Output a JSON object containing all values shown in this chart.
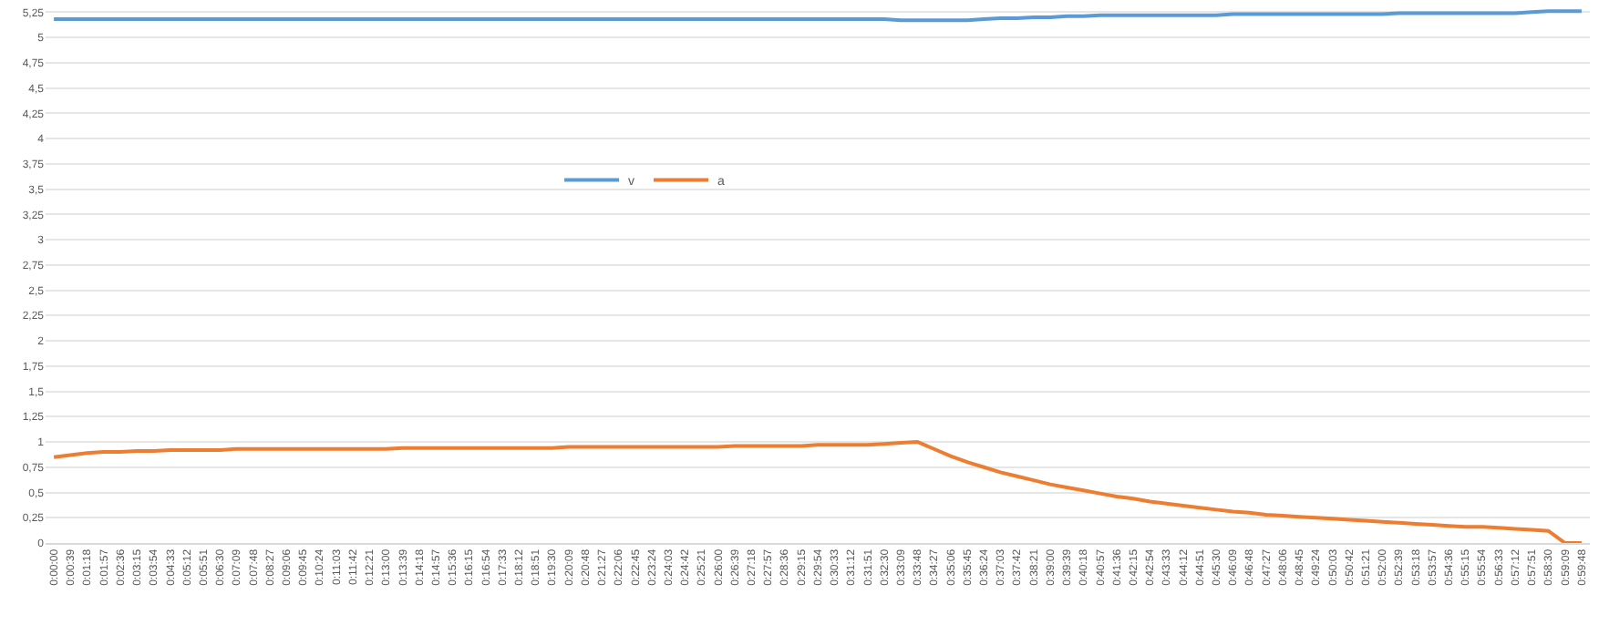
{
  "chart_data": {
    "type": "line",
    "categories": [
      "0:00:00",
      "0:00:39",
      "0:01:18",
      "0:01:57",
      "0:02:36",
      "0:03:15",
      "0:03:54",
      "0:04:33",
      "0:05:12",
      "0:05:51",
      "0:06:30",
      "0:07:09",
      "0:07:48",
      "0:08:27",
      "0:09:06",
      "0:09:45",
      "0:10:24",
      "0:11:03",
      "0:11:42",
      "0:12:21",
      "0:13:00",
      "0:13:39",
      "0:14:18",
      "0:14:57",
      "0:15:36",
      "0:16:15",
      "0:16:54",
      "0:17:33",
      "0:18:12",
      "0:18:51",
      "0:19:30",
      "0:20:09",
      "0:20:48",
      "0:21:27",
      "0:22:06",
      "0:22:45",
      "0:23:24",
      "0:24:03",
      "0:24:42",
      "0:25:21",
      "0:26:00",
      "0:26:39",
      "0:27:18",
      "0:27:57",
      "0:28:36",
      "0:29:15",
      "0:29:54",
      "0:30:33",
      "0:31:12",
      "0:31:51",
      "0:32:30",
      "0:33:09",
      "0:33:48",
      "0:34:27",
      "0:35:06",
      "0:35:45",
      "0:36:24",
      "0:37:03",
      "0:37:42",
      "0:38:21",
      "0:39:00",
      "0:39:39",
      "0:40:18",
      "0:40:57",
      "0:41:36",
      "0:42:15",
      "0:42:54",
      "0:43:33",
      "0:44:12",
      "0:44:51",
      "0:45:30",
      "0:46:09",
      "0:46:48",
      "0:47:27",
      "0:48:06",
      "0:48:45",
      "0:49:24",
      "0:50:03",
      "0:50:42",
      "0:51:21",
      "0:52:00",
      "0:52:39",
      "0:53:18",
      "0:53:57",
      "0:54:36",
      "0:55:15",
      "0:55:54",
      "0:56:33",
      "0:57:12",
      "0:57:51",
      "0:58:30",
      "0:59:09",
      "0:59:48"
    ],
    "series": [
      {
        "name": "v",
        "color": "#5b9bd5",
        "values": [
          5.18,
          5.18,
          5.18,
          5.18,
          5.18,
          5.18,
          5.18,
          5.18,
          5.18,
          5.18,
          5.18,
          5.18,
          5.18,
          5.18,
          5.18,
          5.18,
          5.18,
          5.18,
          5.18,
          5.18,
          5.18,
          5.18,
          5.18,
          5.18,
          5.18,
          5.18,
          5.18,
          5.18,
          5.18,
          5.18,
          5.18,
          5.18,
          5.18,
          5.18,
          5.18,
          5.18,
          5.18,
          5.18,
          5.18,
          5.18,
          5.18,
          5.18,
          5.18,
          5.18,
          5.18,
          5.18,
          5.18,
          5.18,
          5.18,
          5.18,
          5.18,
          5.17,
          5.17,
          5.17,
          5.17,
          5.17,
          5.18,
          5.19,
          5.19,
          5.2,
          5.2,
          5.21,
          5.21,
          5.22,
          5.22,
          5.22,
          5.22,
          5.22,
          5.22,
          5.22,
          5.22,
          5.23,
          5.23,
          5.23,
          5.23,
          5.23,
          5.23,
          5.23,
          5.23,
          5.23,
          5.23,
          5.24,
          5.24,
          5.24,
          5.24,
          5.24,
          5.24,
          5.24,
          5.24,
          5.25,
          5.26,
          5.26,
          5.26
        ]
      },
      {
        "name": "a",
        "color": "#ed7d31",
        "values": [
          0.85,
          0.87,
          0.89,
          0.9,
          0.9,
          0.91,
          0.91,
          0.92,
          0.92,
          0.92,
          0.92,
          0.93,
          0.93,
          0.93,
          0.93,
          0.93,
          0.93,
          0.93,
          0.93,
          0.93,
          0.93,
          0.94,
          0.94,
          0.94,
          0.94,
          0.94,
          0.94,
          0.94,
          0.94,
          0.94,
          0.94,
          0.95,
          0.95,
          0.95,
          0.95,
          0.95,
          0.95,
          0.95,
          0.95,
          0.95,
          0.95,
          0.96,
          0.96,
          0.96,
          0.96,
          0.96,
          0.97,
          0.97,
          0.97,
          0.97,
          0.98,
          0.99,
          1.0,
          0.93,
          0.86,
          0.8,
          0.75,
          0.7,
          0.66,
          0.62,
          0.58,
          0.55,
          0.52,
          0.49,
          0.46,
          0.44,
          0.41,
          0.39,
          0.37,
          0.35,
          0.33,
          0.31,
          0.3,
          0.28,
          0.27,
          0.26,
          0.25,
          0.24,
          0.23,
          0.22,
          0.21,
          0.2,
          0.19,
          0.18,
          0.17,
          0.16,
          0.16,
          0.15,
          0.14,
          0.13,
          0.12,
          0,
          0
        ]
      }
    ],
    "ylim": [
      0,
      5.28
    ],
    "yticks": [
      0,
      {
        "value": 0.25,
        "label": "0,25"
      },
      {
        "value": 0.5,
        "label": "0,5"
      },
      {
        "value": 0.75,
        "label": "0,75"
      },
      1,
      {
        "value": 1.25,
        "label": "1,25"
      },
      {
        "value": 1.5,
        "label": "1,5"
      },
      {
        "value": 1.75,
        "label": "1,75"
      },
      2,
      {
        "value": 2.25,
        "label": "2,25"
      },
      {
        "value": 2.5,
        "label": "2,5"
      },
      {
        "value": 2.75,
        "label": "2,75"
      },
      3,
      {
        "value": 3.25,
        "label": "3,25"
      },
      {
        "value": 3.5,
        "label": "3,5"
      },
      {
        "value": 3.75,
        "label": "3,75"
      },
      4,
      {
        "value": 4.25,
        "label": "4,25"
      },
      {
        "value": 4.5,
        "label": "4,5"
      },
      {
        "value": 4.75,
        "label": "4,75"
      },
      5,
      {
        "value": 5.25,
        "label": "5,25"
      }
    ],
    "grid": "y",
    "legend": "center",
    "marker": "none",
    "line_style": "solid"
  }
}
